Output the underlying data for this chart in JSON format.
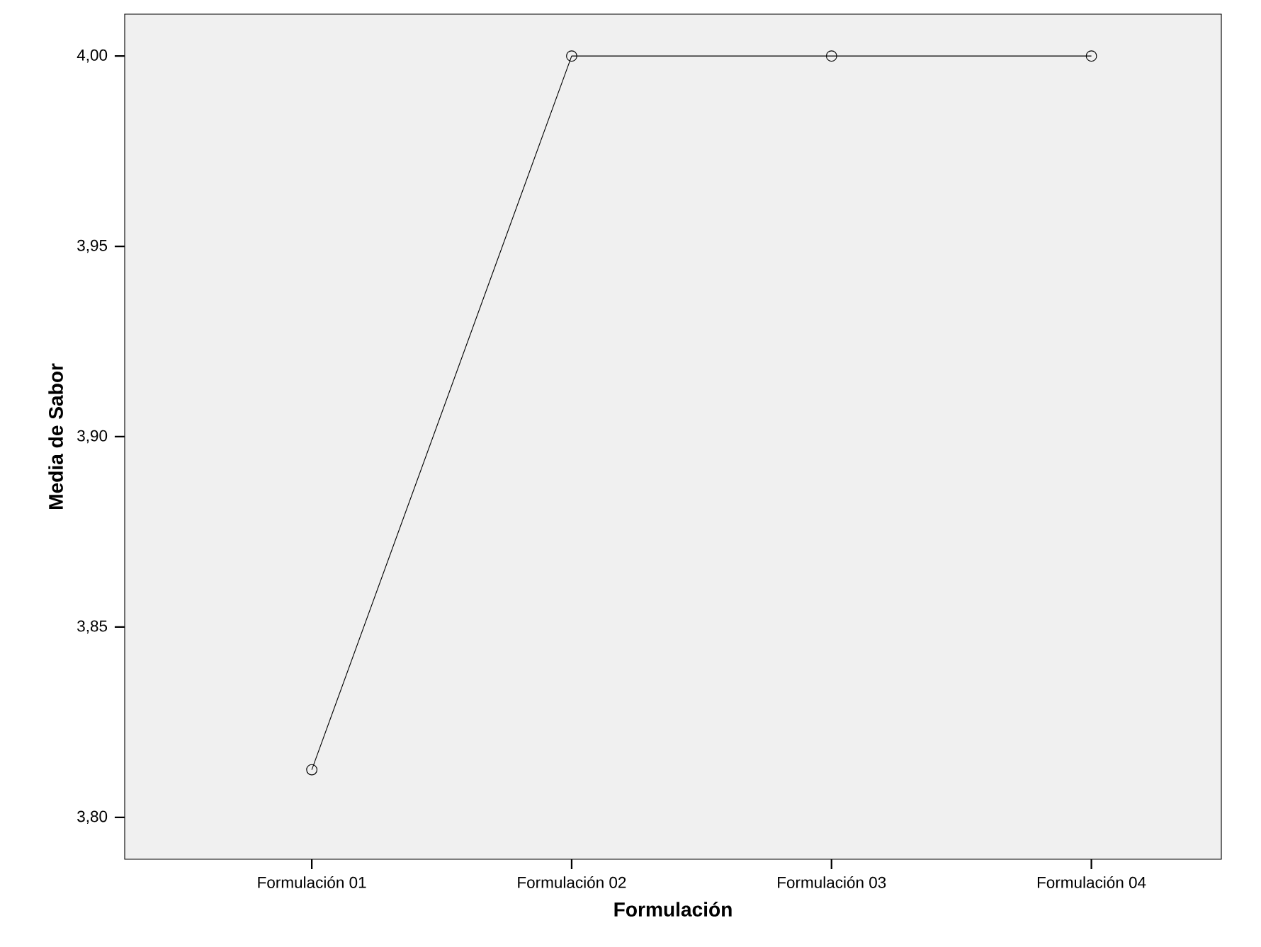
{
  "chart_data": {
    "type": "line",
    "xlabel": "Formulación",
    "ylabel": "Media de Sabor",
    "categories": [
      "Formulación 01",
      "Formulación 02",
      "Formulación 03",
      "Formulación 04"
    ],
    "values": [
      3.8125,
      4.0,
      4.0,
      4.0
    ],
    "color": "#000000",
    "marker": "circle",
    "line_style": "solid",
    "ylim": [
      3.789,
      4.011
    ],
    "yticks": [
      {
        "value": 3.8,
        "label": "3,80"
      },
      {
        "value": 3.85,
        "label": "3,85"
      },
      {
        "value": 3.9,
        "label": "3,90"
      },
      {
        "value": 3.95,
        "label": "3,95"
      },
      {
        "value": 4.0,
        "label": "4,00"
      }
    ]
  }
}
